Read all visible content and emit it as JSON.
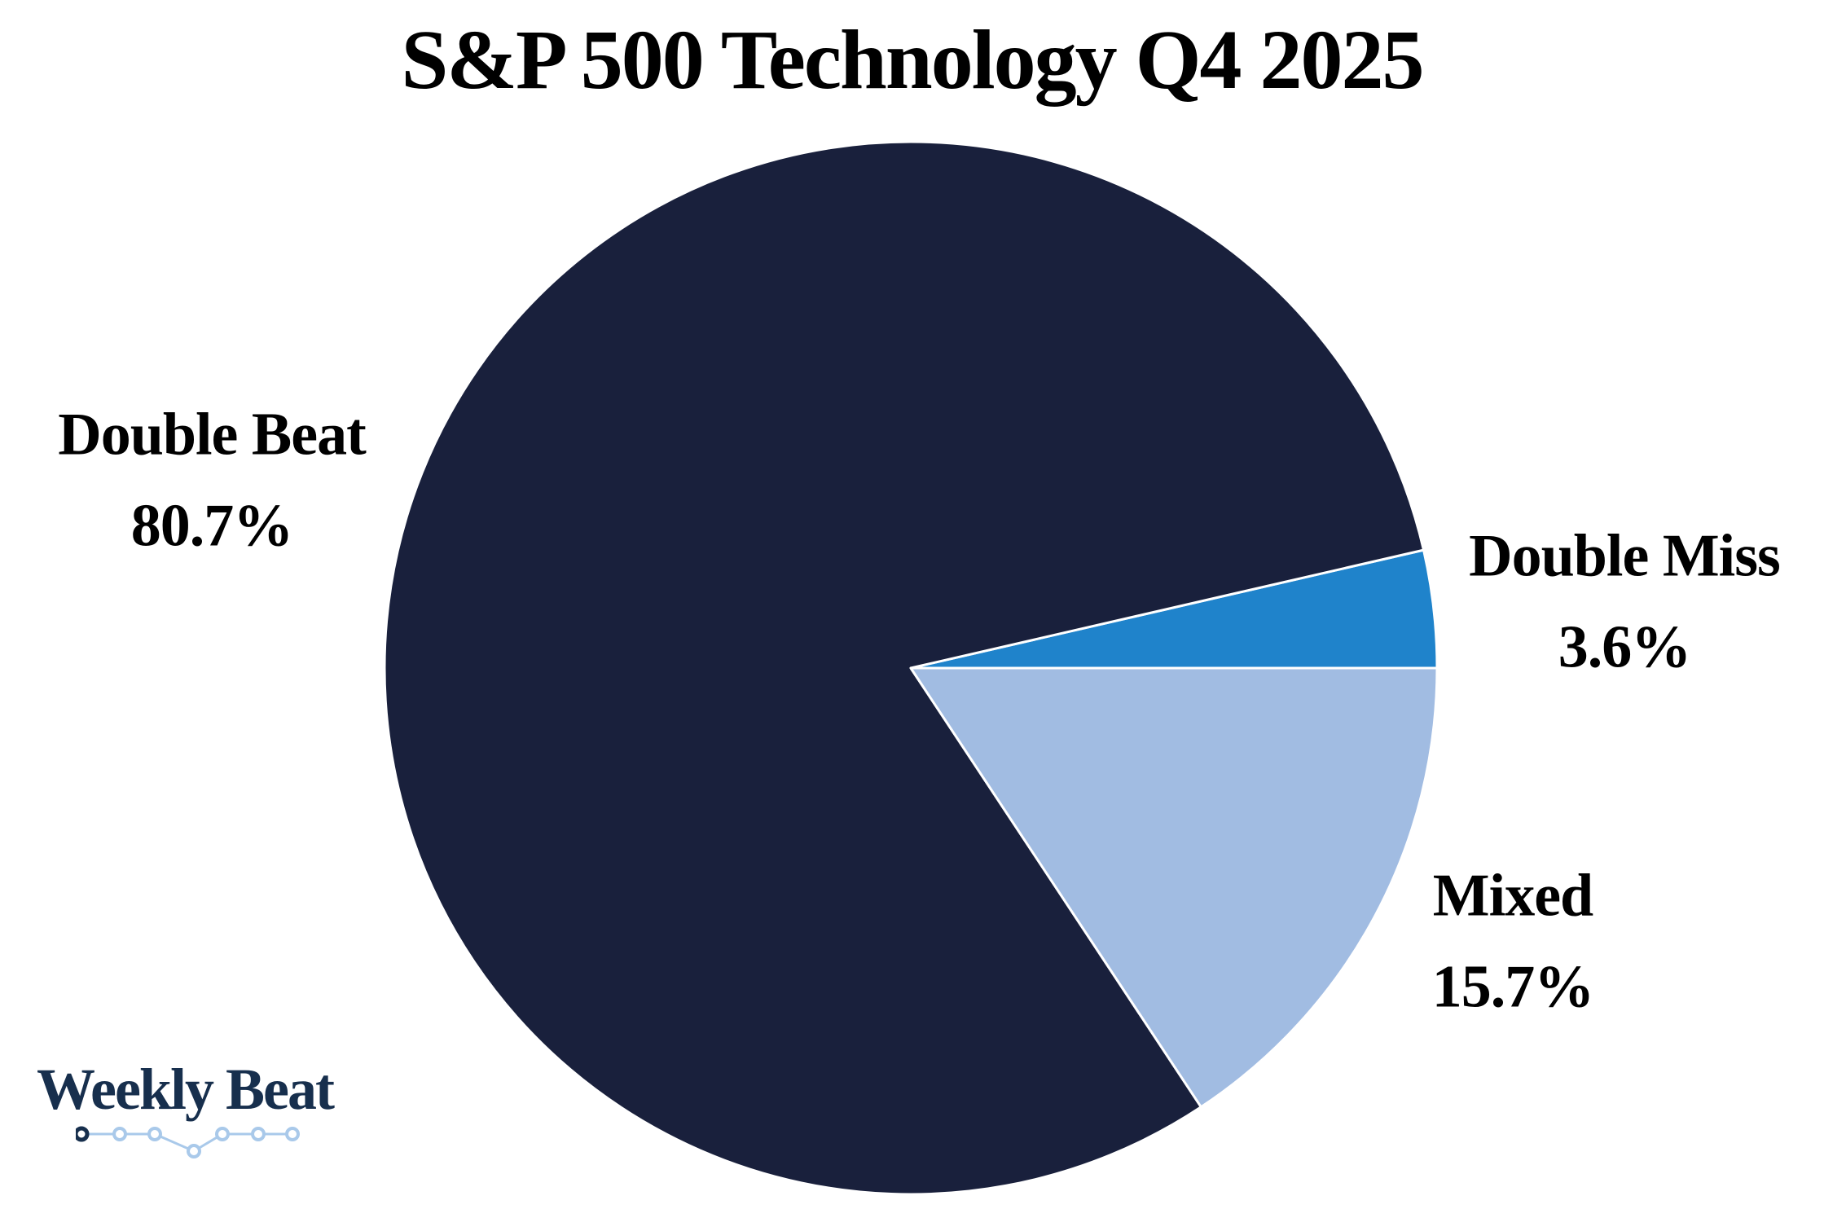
{
  "title": "S&P 500 Technology Q4 2025",
  "brand": {
    "name": "Weekly Beat"
  },
  "colors": {
    "double_beat": "#19203C",
    "double_miss": "#1F83CB",
    "mixed": "#A1BCE2",
    "separator": "#FFFFFF",
    "text": "#000000",
    "logo_text": "#172F4D",
    "sparkline": "#A9C9EA",
    "sparkline_first_node": "#172F4D"
  },
  "chart_data": {
    "type": "pie",
    "title": "S&P 500 Technology Q4 2025",
    "labels": [
      "Double Beat",
      "Double Miss",
      "Mixed"
    ],
    "values": [
      80.7,
      3.6,
      15.7
    ],
    "unit": "%",
    "legend_position": "none",
    "start_angle_deg": 0,
    "counterclockwise": true,
    "slices": [
      {
        "label": "Double Miss",
        "value": 3.6,
        "pct_label": "3.6%",
        "color": "#1F83CB"
      },
      {
        "label": "Double Beat",
        "value": 80.7,
        "pct_label": "80.7%",
        "color": "#19203C"
      },
      {
        "label": "Mixed",
        "value": 15.7,
        "pct_label": "15.7%",
        "color": "#A1BCE2"
      }
    ],
    "callouts": [
      {
        "label": "Double Beat",
        "pct": "80.7%"
      },
      {
        "label": "Double Miss",
        "pct": "3.6%"
      },
      {
        "label": "Mixed",
        "pct": "15.7%"
      }
    ]
  }
}
